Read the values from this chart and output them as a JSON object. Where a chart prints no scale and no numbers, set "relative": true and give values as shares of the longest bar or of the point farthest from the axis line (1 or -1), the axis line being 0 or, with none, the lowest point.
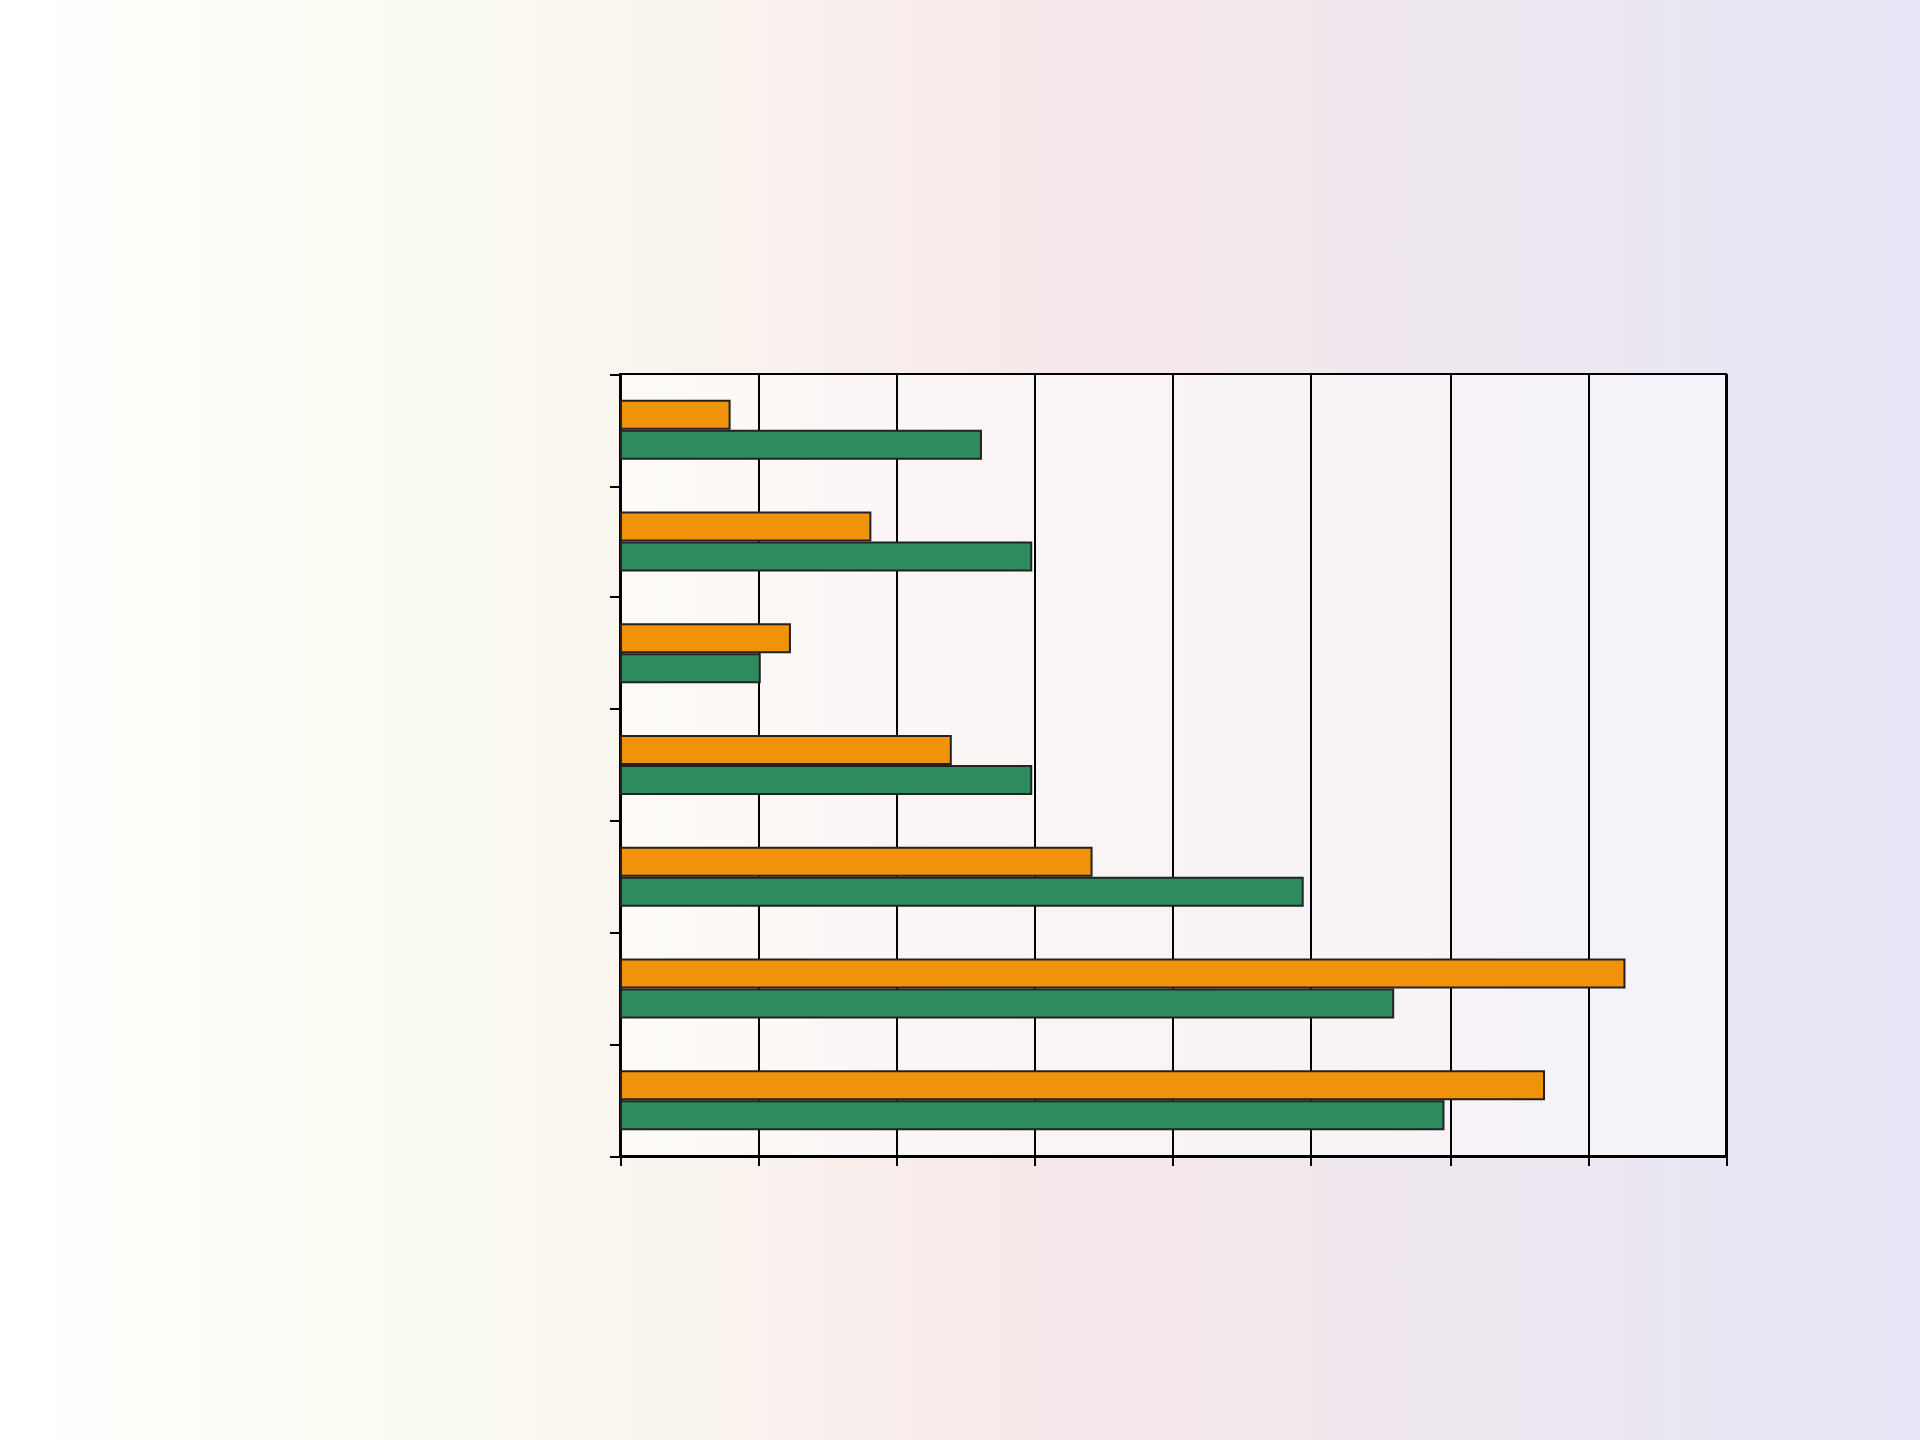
{
  "chart_data": {
    "type": "bar",
    "orientation": "horizontal",
    "relative": true,
    "grid": "x",
    "categories": [
      null,
      null,
      null,
      null,
      null,
      null,
      null
    ],
    "series": [
      {
        "color": "#f0920a",
        "values": [
          0.11,
          0.25,
          0.17,
          0.33,
          0.47,
          1,
          0.92
        ]
      },
      {
        "color": "#2e8b5e",
        "values": [
          0.36,
          0.41,
          0.14,
          0.41,
          0.68,
          0.77,
          0.82
        ]
      }
    ]
  }
}
